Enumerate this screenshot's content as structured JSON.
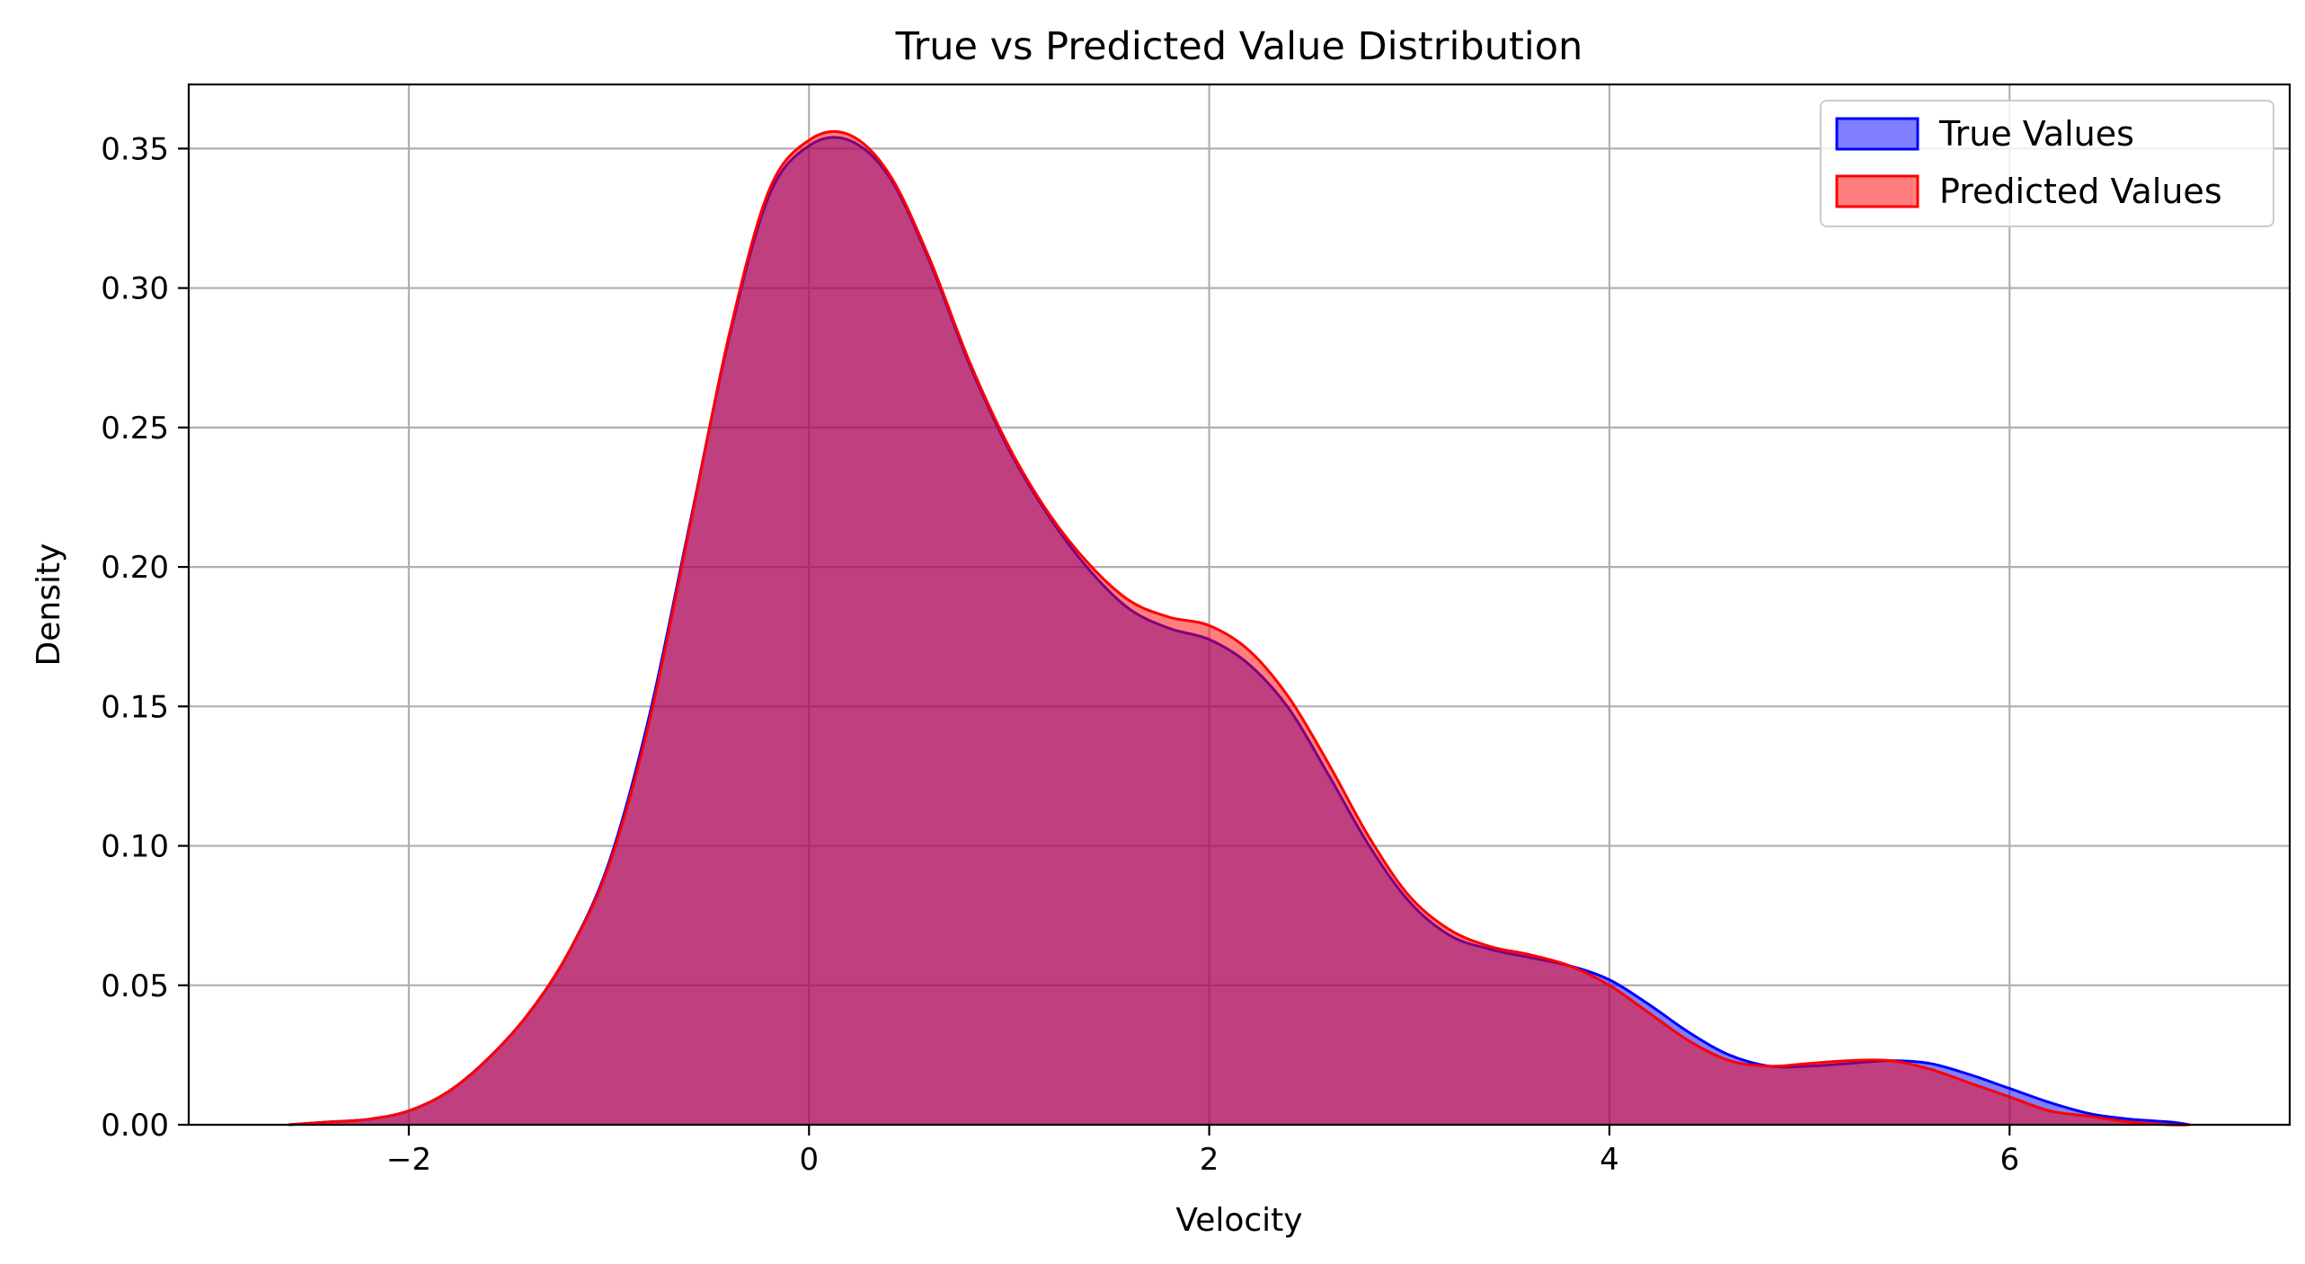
{
  "chart_data": {
    "type": "area",
    "title": "True vs Predicted Value Distribution",
    "xlabel": "Velocity",
    "ylabel": "Density",
    "xlim": [
      -3.1,
      7.4
    ],
    "ylim": [
      0,
      0.373
    ],
    "xticks": [
      -2,
      0,
      2,
      4,
      6
    ],
    "xtick_labels": [
      "−2",
      "0",
      "2",
      "4",
      "6"
    ],
    "yticks": [
      0,
      0.05,
      0.1,
      0.15,
      0.2,
      0.25,
      0.3,
      0.35
    ],
    "ytick_labels": [
      "0.00",
      "0.05",
      "0.10",
      "0.15",
      "0.20",
      "0.25",
      "0.30",
      "0.35"
    ],
    "grid": true,
    "legend_position": "top-right",
    "x": [
      -2.6,
      -2.4,
      -2.2,
      -2.0,
      -1.8,
      -1.6,
      -1.4,
      -1.2,
      -1.0,
      -0.8,
      -0.6,
      -0.4,
      -0.2,
      0.0,
      0.2,
      0.4,
      0.6,
      0.8,
      1.0,
      1.2,
      1.4,
      1.6,
      1.8,
      2.0,
      2.2,
      2.4,
      2.6,
      2.8,
      3.0,
      3.2,
      3.4,
      3.6,
      3.8,
      4.0,
      4.2,
      4.4,
      4.6,
      4.8,
      5.0,
      5.2,
      5.4,
      5.6,
      5.8,
      6.0,
      6.2,
      6.4,
      6.6,
      6.8,
      6.9
    ],
    "series": [
      {
        "name": "True Values",
        "color": "#0000ff",
        "fill": "rgba(0,0,255,0.5)",
        "values": [
          0.0,
          0.001,
          0.002,
          0.005,
          0.012,
          0.024,
          0.04,
          0.062,
          0.094,
          0.146,
          0.214,
          0.282,
          0.333,
          0.351,
          0.353,
          0.34,
          0.31,
          0.273,
          0.242,
          0.218,
          0.199,
          0.185,
          0.178,
          0.174,
          0.165,
          0.149,
          0.125,
          0.1,
          0.08,
          0.068,
          0.063,
          0.06,
          0.057,
          0.052,
          0.043,
          0.033,
          0.025,
          0.021,
          0.021,
          0.022,
          0.023,
          0.022,
          0.018,
          0.013,
          0.008,
          0.004,
          0.002,
          0.001,
          0.0
        ]
      },
      {
        "name": "Predicted Values",
        "color": "#ff0000",
        "fill": "rgba(255,0,0,0.5)",
        "values": [
          0.0,
          0.001,
          0.002,
          0.005,
          0.012,
          0.024,
          0.04,
          0.062,
          0.093,
          0.144,
          0.213,
          0.283,
          0.335,
          0.353,
          0.355,
          0.341,
          0.311,
          0.274,
          0.243,
          0.219,
          0.201,
          0.188,
          0.182,
          0.179,
          0.17,
          0.153,
          0.129,
          0.103,
          0.082,
          0.07,
          0.064,
          0.061,
          0.057,
          0.05,
          0.04,
          0.03,
          0.023,
          0.021,
          0.022,
          0.023,
          0.023,
          0.02,
          0.015,
          0.01,
          0.005,
          0.003,
          0.001,
          0.0,
          0.0
        ]
      }
    ]
  }
}
